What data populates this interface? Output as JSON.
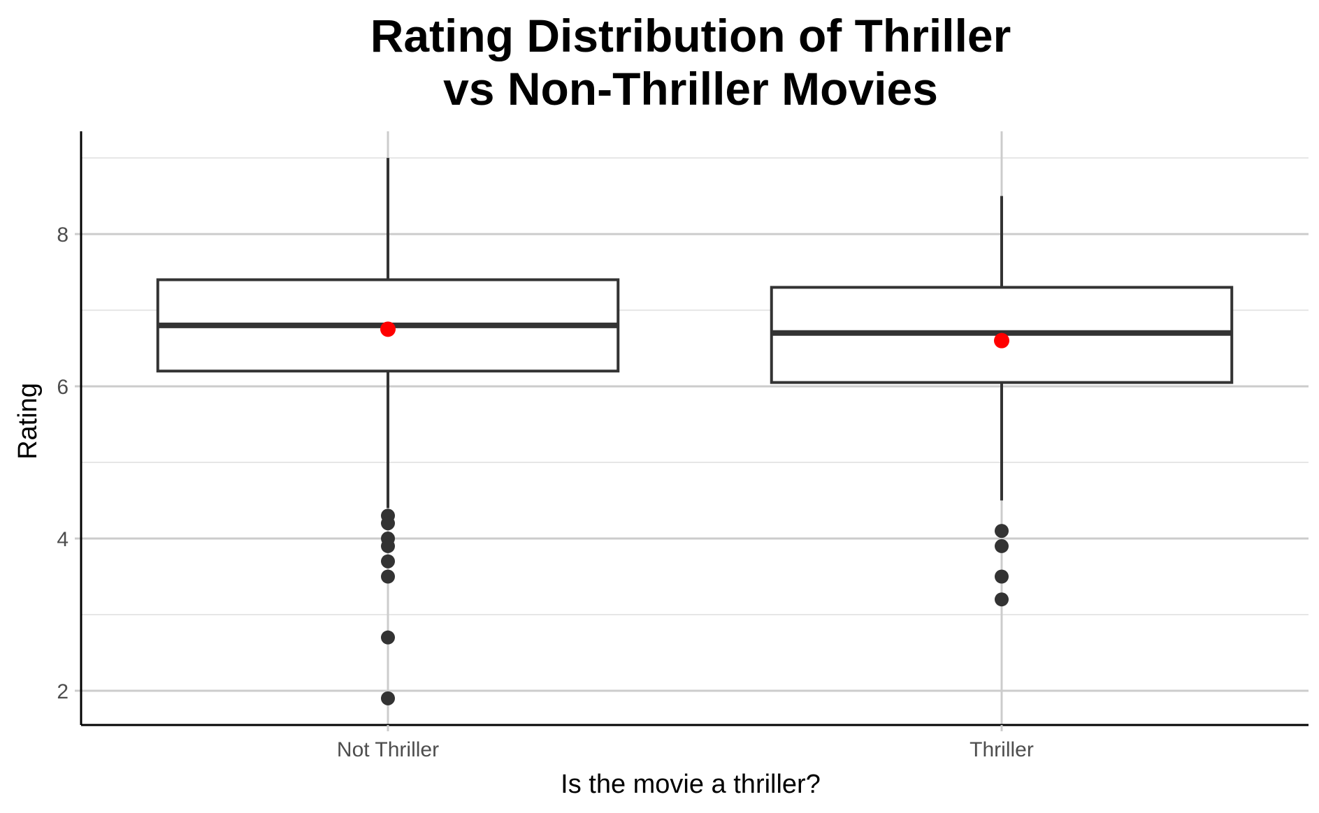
{
  "chart_data": {
    "type": "box",
    "title": [
      "Rating Distribution of Thriller",
      "vs Non-Thriller Movies"
    ],
    "xlabel": "Is the movie a thriller?",
    "ylabel": "Rating",
    "ylim": [
      1.55,
      9.35
    ],
    "yticks": [
      2,
      4,
      6,
      8
    ],
    "y_minor_ticks": [
      3,
      5,
      7,
      9
    ],
    "grid": true,
    "categories": [
      "Not Thriller",
      "Thriller"
    ],
    "boxes": [
      {
        "category": "Not Thriller",
        "whisker_low": 4.4,
        "q1": 6.2,
        "median": 6.8,
        "q3": 7.4,
        "whisker_high": 9.0,
        "mean": 6.75,
        "outliers": [
          4.3,
          4.2,
          4.0,
          3.9,
          3.7,
          3.5,
          2.7,
          1.9
        ]
      },
      {
        "category": "Thriller",
        "whisker_low": 4.5,
        "q1": 6.05,
        "median": 6.7,
        "q3": 7.3,
        "whisker_high": 8.5,
        "mean": 6.6,
        "outliers": [
          4.1,
          3.9,
          3.5,
          3.2
        ]
      }
    ],
    "colors": {
      "box_stroke": "#333333",
      "box_fill": "#ffffff",
      "mean_point": "#ff0000",
      "outlier": "#333333",
      "grid_major": "#cccccc",
      "grid_minor": "#e6e6e6",
      "axis_line": "#000000"
    }
  }
}
